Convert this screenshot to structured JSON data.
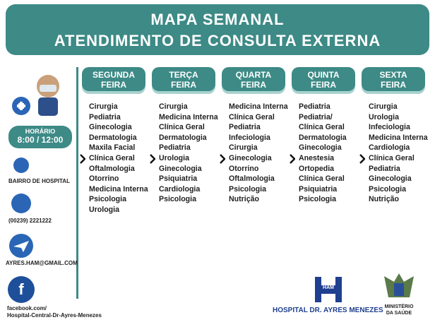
{
  "header": {
    "title": [
      "MAPA SEMANAL",
      "ATENDIMENTO DE CONSULTA EXTERNA"
    ]
  },
  "sidebar": {
    "hours_label": "HORÁRIO",
    "hours": "8:00 / 12:00",
    "address": "BAIRRO DE HOSPITAL",
    "phone": "(00239) 2221222",
    "email": "AYRES.HAM@GMAIL.COM",
    "facebook": [
      "facebook.com/",
      "Hospital-Central-Dr-Ayres-Menezes"
    ]
  },
  "days": [
    {
      "name": [
        "SEGUNDA",
        "FEIRA"
      ],
      "items": [
        "Cirurgia",
        "Pediatria",
        "Ginecologia",
        "Dermatologia",
        "Maxila Facial",
        "Clínica Geral",
        "Oftalmologia",
        "Otorrino",
        "Medicina Interna",
        "Psicologia",
        "Urologia"
      ]
    },
    {
      "name": [
        "TERÇA",
        "FEIRA"
      ],
      "items": [
        "Cirurgia",
        "Medicina Interna",
        "Clínica Geral",
        "Dermatologia",
        "Pediatria",
        "Urologia",
        "Ginecologia",
        "Psiquiatria",
        "Cardiologia",
        "Psicologia"
      ]
    },
    {
      "name": [
        "QUARTA",
        "FEIRA"
      ],
      "items": [
        "Medicina Interna",
        "Clínica Geral",
        "Pediatria",
        "Infeciologia",
        "Cirurgia",
        "Ginecologia",
        "Otorrino",
        "Oftalmologia",
        "Psicologia",
        "Nutrição"
      ]
    },
    {
      "name": [
        "QUINTA",
        "FEIRA"
      ],
      "items": [
        "Pediatria",
        "Pediatria/",
        "Clínica Geral",
        "Dermatologia",
        "Ginecologia",
        "Anestesia",
        "Ortopedia",
        "Clínica Geral",
        "Psiquiatria",
        "Psicologia"
      ]
    },
    {
      "name": [
        "SEXTA",
        "FEIRA"
      ],
      "items": [
        "Cirurgia",
        "Urologia",
        "Infeciologia",
        "Medicina Interna",
        "Cardiologia",
        "Clínica Geral",
        "Pediatria",
        "Ginecologia",
        "Psicologia",
        "Nutrição"
      ]
    }
  ],
  "footer": {
    "logo": "HAM",
    "hospital": "HOSPITAL DR. AYRES MENEZES",
    "ministry": [
      "MINISTÉRIO",
      "DA SAÚDE"
    ]
  }
}
